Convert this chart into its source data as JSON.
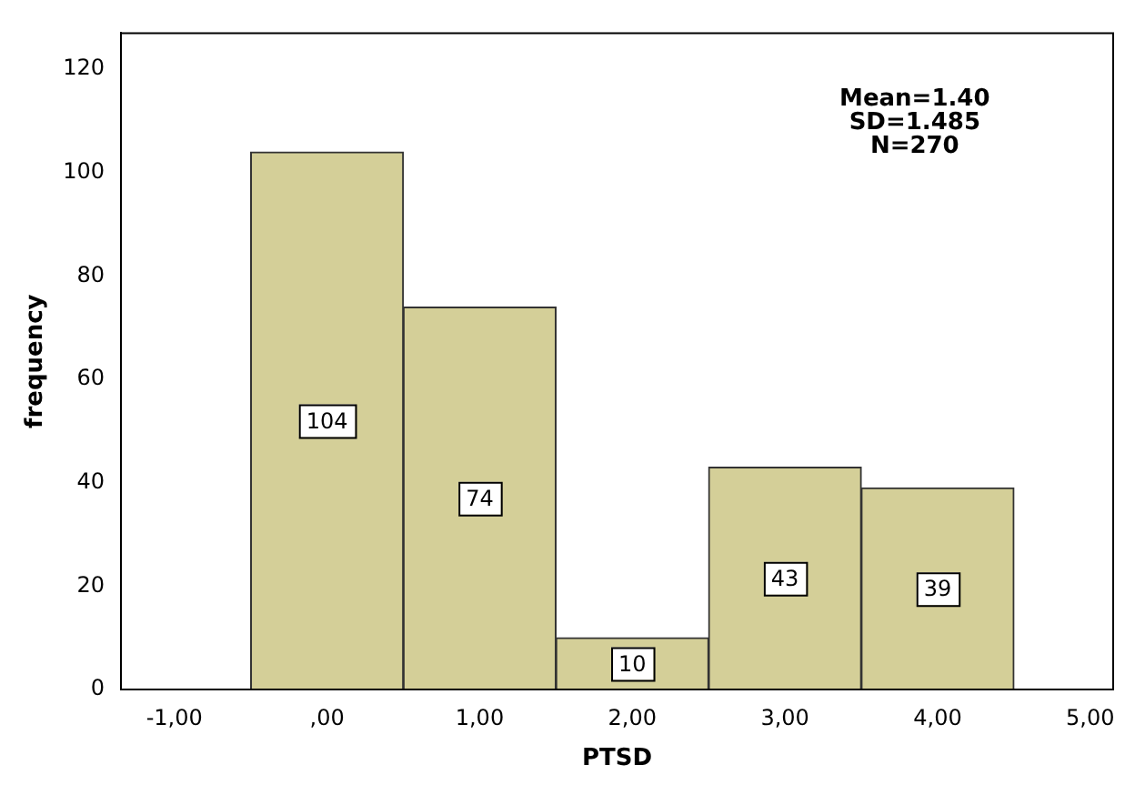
{
  "chart_data": {
    "type": "histogram",
    "xlabel": "PTSD",
    "ylabel": "frequency",
    "bins": [
      -0.5,
      0.5,
      1.5,
      2.5,
      3.5,
      4.5
    ],
    "values": [
      104,
      74,
      10,
      43,
      39
    ],
    "color": "#d4cf98",
    "data_labels": true,
    "xlim": [
      -1.35,
      5.15
    ],
    "xticks": [
      {
        "value": -1,
        "label": "-1,00"
      },
      {
        "value": 0,
        "label": ",00"
      },
      {
        "value": 1,
        "label": "1,00"
      },
      {
        "value": 2,
        "label": "2,00"
      },
      {
        "value": 3,
        "label": "3,00"
      },
      {
        "value": 4,
        "label": "4,00"
      },
      {
        "value": 5,
        "label": "5,00"
      }
    ],
    "ylim": [
      0,
      127
    ],
    "yticks": [
      0,
      20,
      40,
      60,
      80,
      100,
      120
    ],
    "grid": false,
    "legend": false,
    "annotations": [
      "Mean=1.40",
      "SD=1.485",
      "N=270"
    ]
  }
}
